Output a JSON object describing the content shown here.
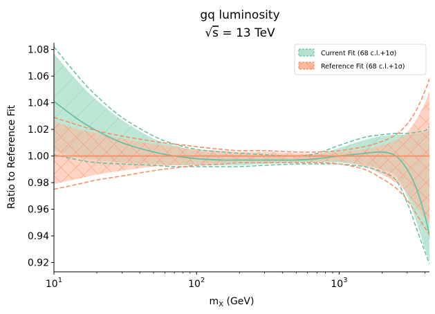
{
  "chart_data": {
    "type": "area",
    "title_line1": "gq luminosity",
    "title_sqrt_symbol": "√",
    "title_sqrt_arg": "s",
    "title_rest": " = 13 TeV",
    "xlabel_main": "m",
    "xlabel_sub": "X",
    "xlabel_unit": " (GeV)",
    "ylabel": "Ratio to Reference Fit",
    "xscale": "log",
    "xlim": [
      10,
      4300
    ],
    "ylim": [
      0.913,
      1.085
    ],
    "yticks": [
      0.92,
      0.94,
      0.96,
      0.98,
      1.0,
      1.02,
      1.04,
      1.06,
      1.08
    ],
    "ytick_labels": [
      "0.92",
      "0.94",
      "0.96",
      "0.98",
      "1.00",
      "1.02",
      "1.04",
      "1.06",
      "1.08"
    ],
    "xticks": [
      10,
      100,
      1000
    ],
    "xtick_base": "10",
    "xtick_exponents": [
      "1",
      "2",
      "3"
    ],
    "grid": false,
    "legend_position": "top-right",
    "colors": {
      "current_line": "#66c2a5",
      "current_fill": "#b3e2cd",
      "reference_line": "#fc8d62",
      "reference_fill": "#fdb8a0"
    },
    "x": [
      10,
      15,
      20,
      30,
      50,
      70,
      100,
      150,
      200,
      300,
      500,
      700,
      1000,
      1500,
      2000,
      2500,
      3000,
      3500,
      4000,
      4300
    ],
    "series": [
      {
        "name": "Current Fit (68 c.l.+1σ)",
        "central": [
          1.041,
          1.027,
          1.019,
          1.01,
          1.003,
          1.0,
          0.998,
          0.997,
          0.997,
          0.997,
          0.997,
          0.998,
          1.0,
          1.002,
          1.003,
          1.0,
          0.99,
          0.975,
          0.955,
          0.94
        ],
        "upper": [
          1.077,
          1.055,
          1.042,
          1.027,
          1.013,
          1.008,
          1.004,
          1.002,
          1.001,
          1.0,
          0.999,
          1.001,
          1.006,
          1.012,
          1.015,
          1.016,
          1.016,
          1.017,
          1.018,
          1.02
        ],
        "lower": [
          1.004,
          0.999,
          0.997,
          0.995,
          0.994,
          0.993,
          0.993,
          0.993,
          0.993,
          0.994,
          0.995,
          0.995,
          0.995,
          0.993,
          0.99,
          0.985,
          0.97,
          0.95,
          0.93,
          0.921
        ],
        "upper_dashed": [
          1.082,
          1.059,
          1.045,
          1.029,
          1.015,
          1.009,
          1.005,
          1.003,
          1.002,
          1.001,
          1.0,
          1.002,
          1.008,
          1.014,
          1.016,
          1.017,
          1.017,
          1.018,
          1.019,
          1.022
        ],
        "lower_dashed": [
          1.001,
          0.997,
          0.995,
          0.994,
          0.993,
          0.992,
          0.992,
          0.992,
          0.992,
          0.993,
          0.994,
          0.994,
          0.994,
          0.992,
          0.988,
          0.982,
          0.965,
          0.945,
          0.928,
          0.919
        ]
      },
      {
        "name": "Reference Fit (68 c.l.+1σ)",
        "central": [
          1.0,
          1.0,
          1.0,
          1.0,
          1.0,
          1.0,
          1.0,
          1.0,
          1.0,
          1.0,
          1.0,
          1.0,
          1.0,
          1.0,
          1.0,
          1.0,
          1.0,
          1.0,
          1.0,
          1.0
        ],
        "upper": [
          1.026,
          1.02,
          1.017,
          1.013,
          1.009,
          1.007,
          1.005,
          1.004,
          1.003,
          1.003,
          1.002,
          1.002,
          1.003,
          1.005,
          1.008,
          1.012,
          1.018,
          1.028,
          1.04,
          1.049
        ],
        "lower": [
          0.979,
          0.983,
          0.986,
          0.989,
          0.992,
          0.993,
          0.994,
          0.995,
          0.996,
          0.996,
          0.996,
          0.996,
          0.996,
          0.992,
          0.986,
          0.98,
          0.972,
          0.961,
          0.953,
          0.949
        ],
        "upper_dashed": [
          1.029,
          1.023,
          1.019,
          1.015,
          1.011,
          1.009,
          1.007,
          1.005,
          1.004,
          1.004,
          1.003,
          1.003,
          1.004,
          1.007,
          1.011,
          1.016,
          1.024,
          1.035,
          1.049,
          1.058
        ],
        "lower_dashed": [
          0.975,
          0.979,
          0.982,
          0.985,
          0.989,
          0.991,
          0.993,
          0.994,
          0.995,
          0.995,
          0.995,
          0.995,
          0.994,
          0.99,
          0.983,
          0.976,
          0.967,
          0.956,
          0.946,
          0.941
        ]
      }
    ]
  }
}
